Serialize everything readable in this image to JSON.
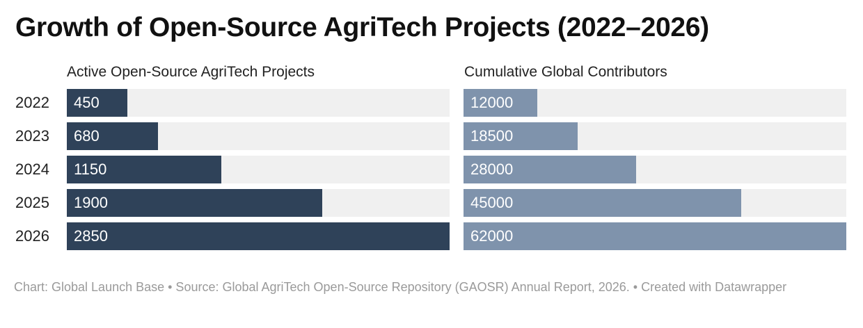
{
  "chart_data": {
    "type": "bar",
    "title": "Growth of Open-Source AgriTech Projects (2022–2026)",
    "categories": [
      "2022",
      "2023",
      "2024",
      "2025",
      "2026"
    ],
    "series": [
      {
        "name": "Active Open-Source AgriTech Projects",
        "values": [
          450,
          680,
          1150,
          1900,
          2850
        ],
        "color": "#2f4259",
        "xlim": [
          0,
          2850
        ]
      },
      {
        "name": "Cumulative Global Contributors",
        "values": [
          12000,
          18500,
          28000,
          45000,
          62000
        ],
        "color": "#7f93ac",
        "xlim": [
          0,
          62000
        ]
      }
    ],
    "orientation": "horizontal",
    "track_color": "#f0f0f0",
    "grid": false
  },
  "footer": {
    "text": "Chart: Global Launch Base  • Source: Global AgriTech Open-Source Repository (GAOSR) Annual Report, 2026. • Created with Datawrapper"
  }
}
